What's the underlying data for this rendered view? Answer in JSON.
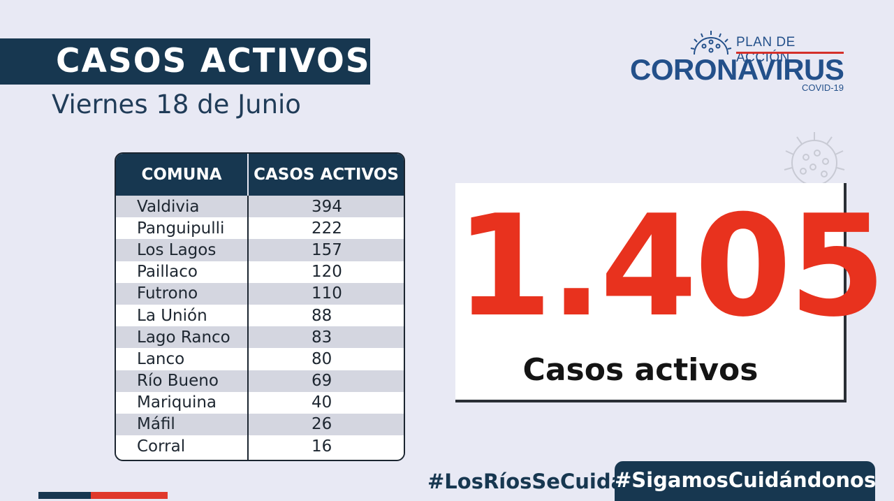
{
  "header": {
    "title": "CASOS ACTIVOS",
    "date": "Viernes 18 de Junio"
  },
  "logo": {
    "plan": "PLAN DE ACCIÓN",
    "main": "CORONAVIRUS",
    "sub": "COVID-19"
  },
  "table": {
    "headers": [
      "COMUNA",
      "CASOS ACTIVOS"
    ],
    "rows": [
      {
        "comuna": "Valdivia",
        "casos": "394"
      },
      {
        "comuna": "Panguipulli",
        "casos": "222"
      },
      {
        "comuna": "Los Lagos",
        "casos": "157"
      },
      {
        "comuna": "Paillaco",
        "casos": "120"
      },
      {
        "comuna": "Futrono",
        "casos": "110"
      },
      {
        "comuna": "La Unión",
        "casos": "88"
      },
      {
        "comuna": "Lago Ranco",
        "casos": "83"
      },
      {
        "comuna": "Lanco",
        "casos": "80"
      },
      {
        "comuna": "Río Bueno",
        "casos": "69"
      },
      {
        "comuna": "Mariquina",
        "casos": "40"
      },
      {
        "comuna": "Máfil",
        "casos": "26"
      },
      {
        "comuna": "Corral",
        "casos": "16"
      }
    ]
  },
  "total": {
    "number": "1.405",
    "label": "Casos activos"
  },
  "footer": {
    "hashtag_1": "#LosRíosSeCuida",
    "hashtag_2": "#SigamosCuidándonos"
  },
  "colors": {
    "navy": "#173750",
    "red": "#e8321e",
    "background": "#e8e9f4"
  }
}
